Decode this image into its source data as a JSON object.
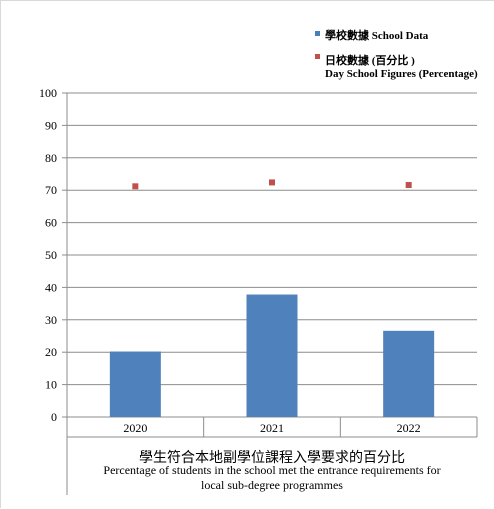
{
  "legend": {
    "school": {
      "label": "學校數據 School Data",
      "color": "#4a7ebb"
    },
    "day": {
      "line1": "日校數據 (百分比 )",
      "line2": "Day School Figures (Percentage)",
      "color": "#c0504d"
    }
  },
  "caption": {
    "zh": "學生符合本地副學位課程入學要求的百分比",
    "en1": "Percentage of students in the school met the entrance requirements for",
    "en2": "local sub-degree programmes"
  },
  "chart_data": {
    "type": "bar",
    "categories": [
      "2020",
      "2021",
      "2022"
    ],
    "series": [
      {
        "name": "學校數據 School Data",
        "kind": "bar",
        "color": "#4f81bd",
        "values": [
          20.2,
          37.8,
          26.6
        ]
      },
      {
        "name": "日校數據 (百分比 ) Day School Figures (Percentage)",
        "kind": "marker",
        "color": "#c0504d",
        "values": [
          71.2,
          72.4,
          71.6
        ]
      }
    ],
    "ylim": [
      0,
      100
    ],
    "yticks": [
      0,
      10,
      20,
      30,
      40,
      50,
      60,
      70,
      80,
      90,
      100
    ],
    "grid": true,
    "legend_position": "top-right"
  }
}
